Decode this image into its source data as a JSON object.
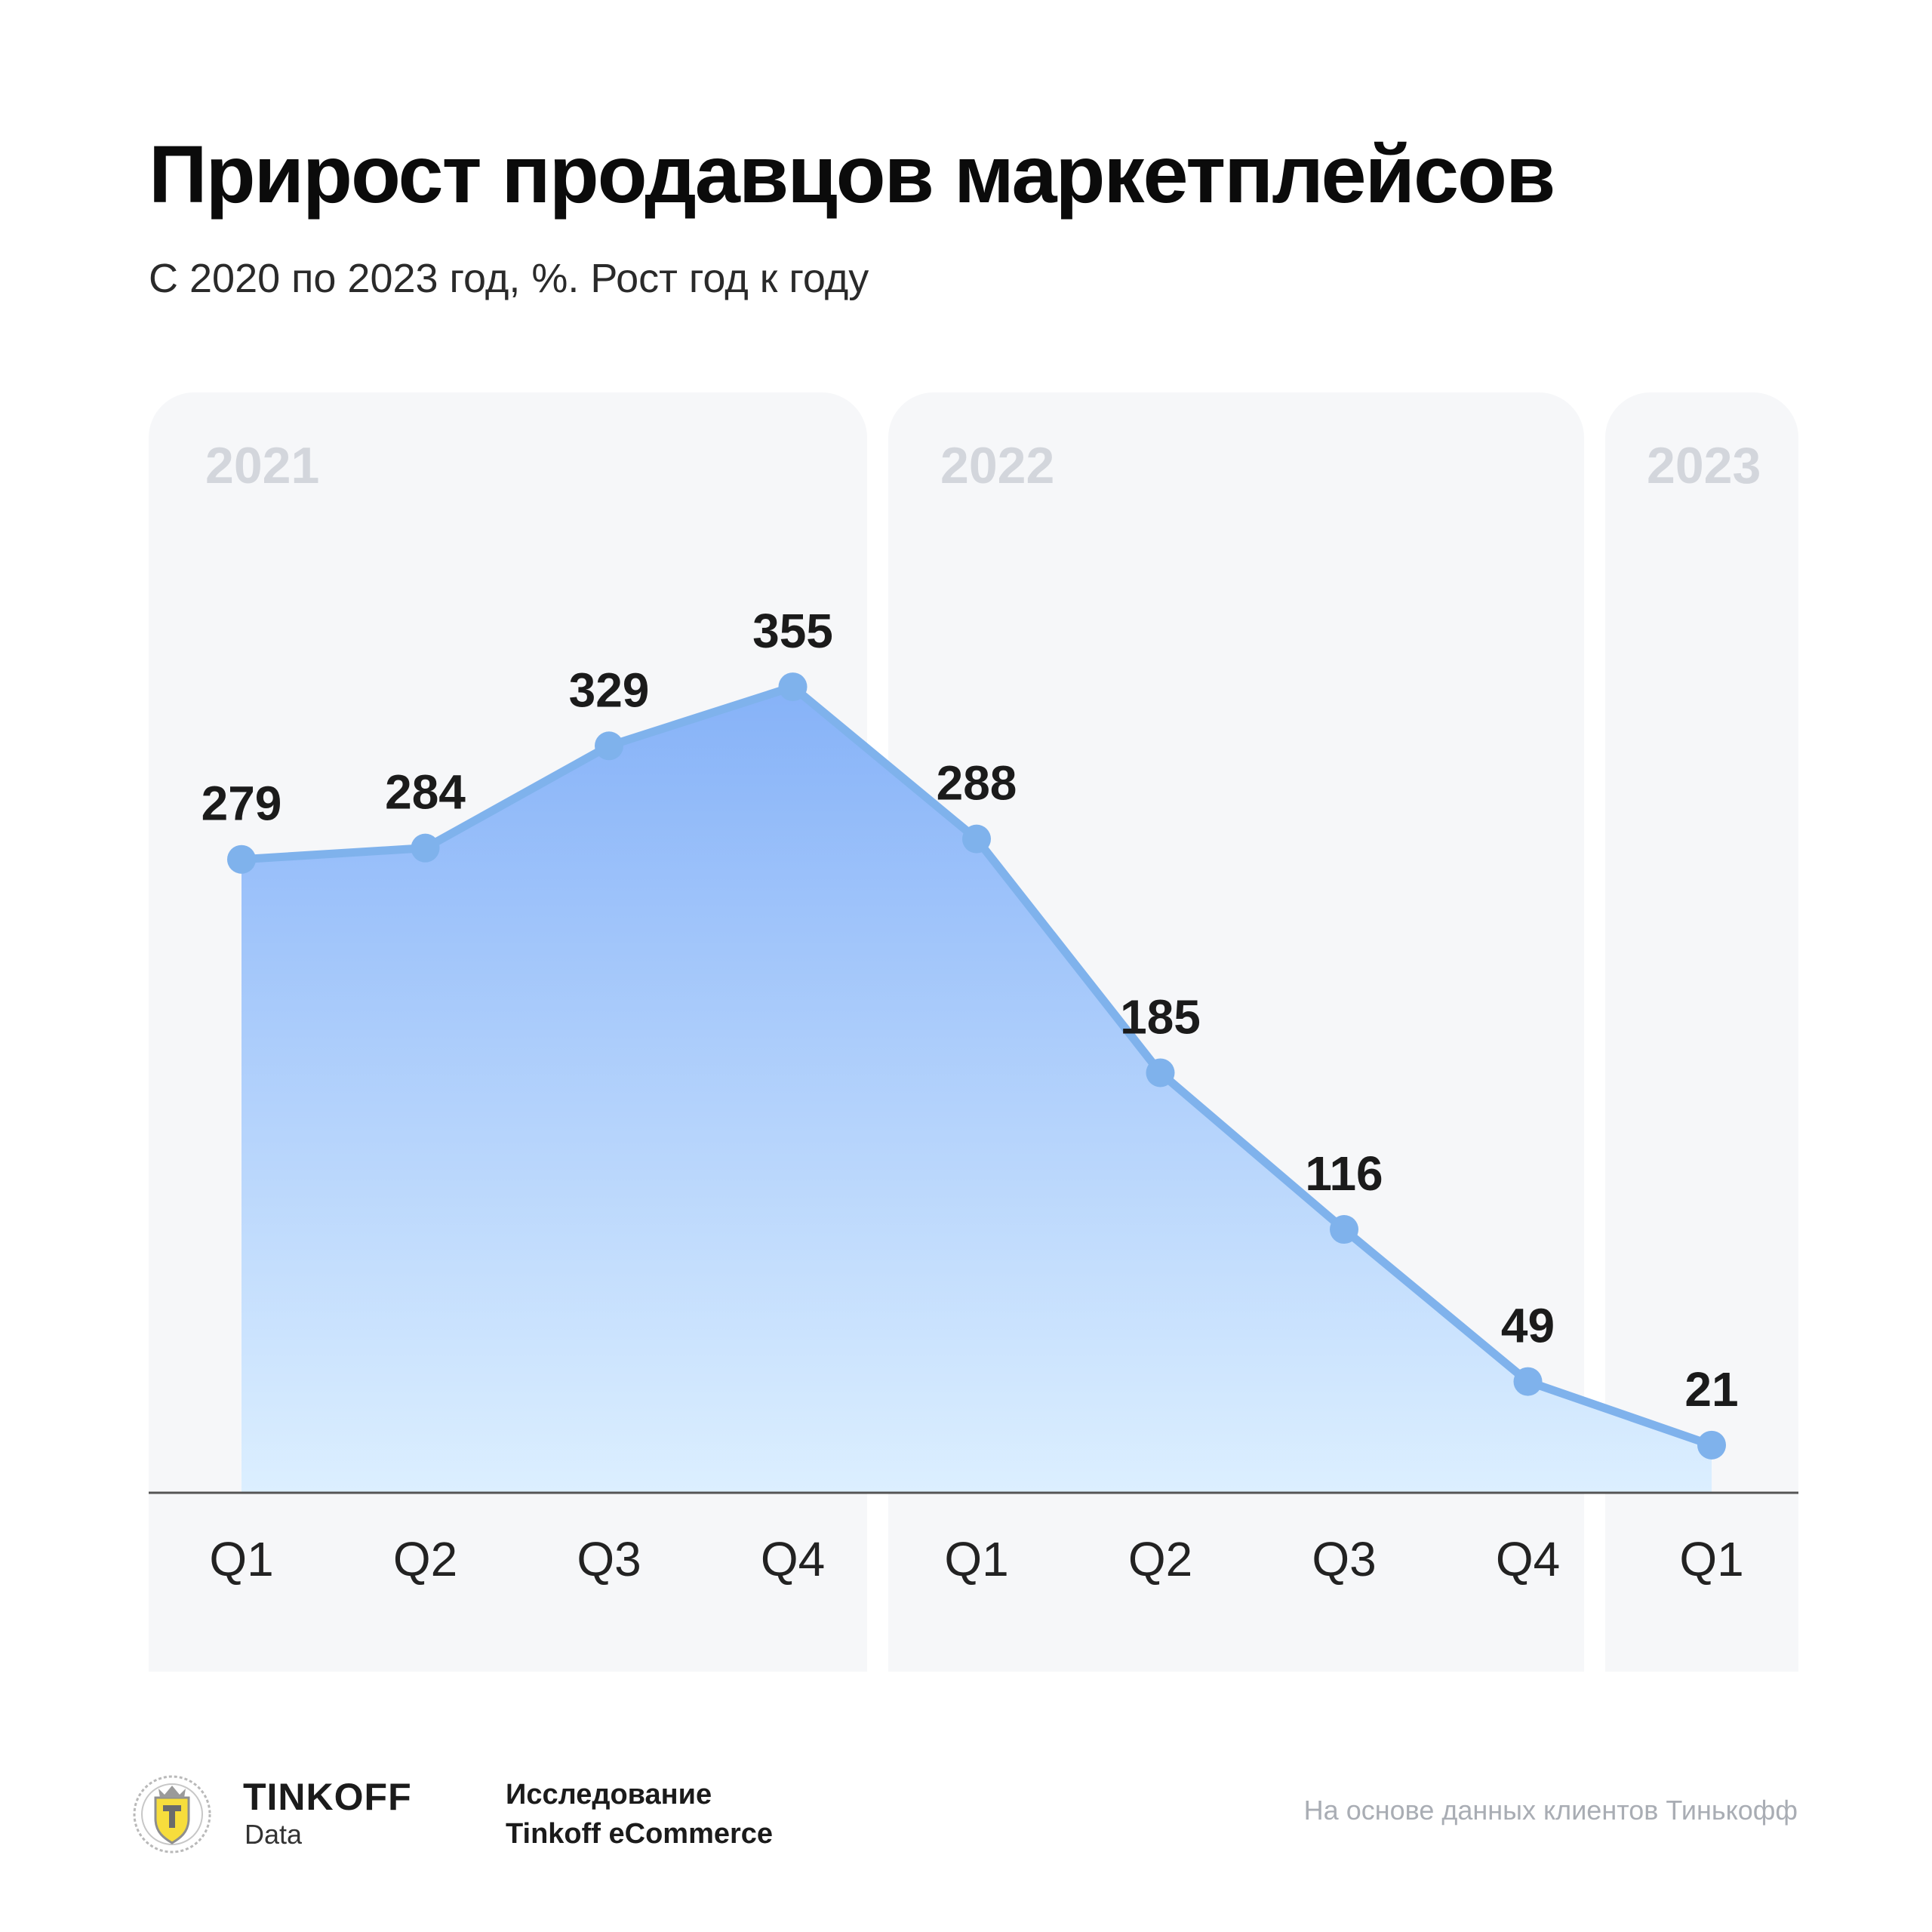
{
  "header": {
    "title": "Прирост продавцов маркетплейсов",
    "subtitle": "С 2020 по 2023 год, %. Рост год к году"
  },
  "chart_data": {
    "type": "area",
    "title": "Прирост продавцов маркетплейсов",
    "subtitle": "С 2020 по 2023 год, %. Рост год к году",
    "groups": [
      {
        "year": "2021",
        "quarters": [
          "Q1",
          "Q2",
          "Q3",
          "Q4"
        ]
      },
      {
        "year": "2022",
        "quarters": [
          "Q1",
          "Q2",
          "Q3",
          "Q4"
        ]
      },
      {
        "year": "2023",
        "quarters": [
          "Q1"
        ]
      }
    ],
    "categories": [
      "Q1",
      "Q2",
      "Q3",
      "Q4",
      "Q1",
      "Q2",
      "Q3",
      "Q4",
      "Q1"
    ],
    "values": [
      279,
      284,
      329,
      355,
      288,
      185,
      116,
      49,
      21
    ],
    "ylim": [
      0,
      365
    ],
    "line_color": "#7fb2ec",
    "fill_top_color": "#86b2f8",
    "fill_bottom_color": "#dcefff",
    "grid": false,
    "legend": "none"
  },
  "footer": {
    "brand": "TINKOFF",
    "brand_sub": "Data",
    "research_line1": "Исследование",
    "research_line2": "Tinkoff eCommerce",
    "source": "На основе данных клиентов Тинькофф"
  }
}
